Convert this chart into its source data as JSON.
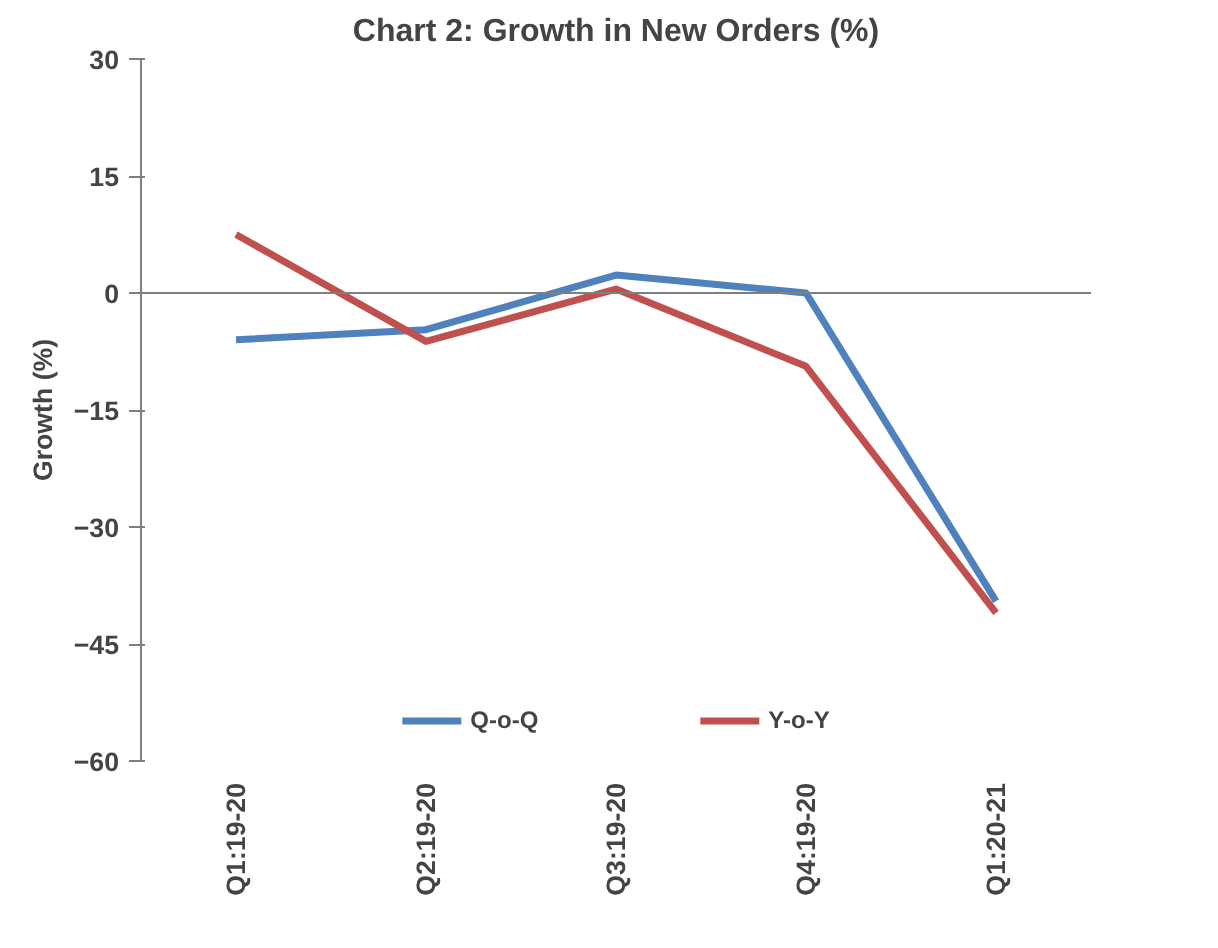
{
  "chart_data": {
    "type": "line",
    "title": "Chart 2: Growth in New Orders (%)",
    "ylabel": "Growth (%)",
    "categories": [
      "Q1:19-20",
      "Q2:19-20",
      "Q3:19-20",
      "Q4:19-20",
      "Q1:20-21"
    ],
    "series": [
      {
        "name": "Q-o-Q",
        "color": "#4f81bd",
        "values": [
          -6.0,
          -4.7,
          2.3,
          0.0,
          -39.5
        ]
      },
      {
        "name": "Y-o-Y",
        "color": "#c0504d",
        "values": [
          7.5,
          -6.2,
          0.5,
          -9.4,
          -41.0
        ]
      }
    ],
    "ref_lines": [
      {
        "axis": "y",
        "value": 0,
        "color": "#7f7f7f"
      }
    ],
    "ylim": [
      -60,
      30
    ],
    "yticks": [
      -60,
      -45,
      -30,
      -15,
      0,
      15,
      30
    ],
    "grid": false,
    "legend": "bottom",
    "marker": "none",
    "line_style": "solid"
  }
}
